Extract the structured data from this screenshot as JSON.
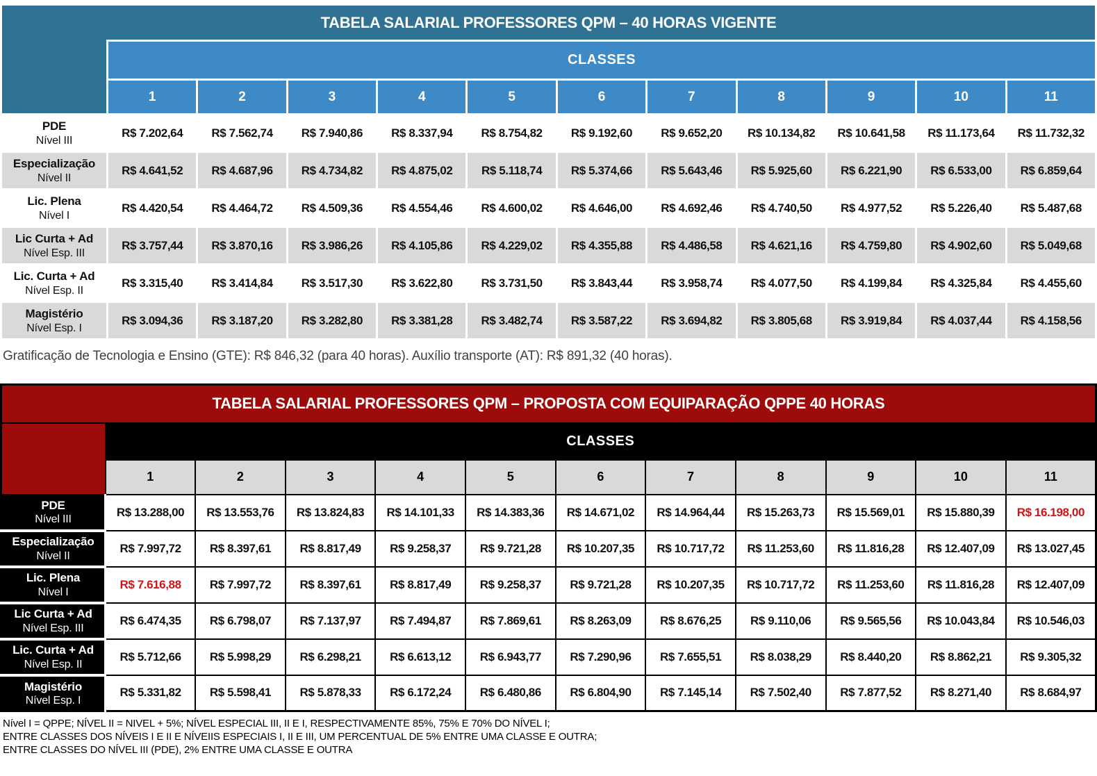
{
  "colors": {
    "blue_dark": "#2F7294",
    "blue_mid": "#3E8AC6",
    "red_dark": "#9E0B0B",
    "gray_row": "#D9D9D9",
    "red_accent": "#CC1616"
  },
  "page": {
    "gte_note": "Gratificação de Tecnologia e Ensino (GTE): R$ 846,32 (para 40 horas). Auxílio transporte (AT): R$ 891,32 (40 horas).",
    "bottom_notes": [
      "Nível I = QPPE; NÍVEL II = NIVEL  + 5%; NÍVEL ESPECIAL III, II E I, RESPECTIVAMENTE 85%, 75% E 70% DO NÍVEL I;",
      "ENTRE CLASSES DOS NÍVEIS I E II E NÍVEIIS ESPECIAIS I, II E III, UM PERCENTUAL DE 5% ENTRE UMA CLASSE E OUTRA;",
      "ENTRE CLASSES DO NÍVEL III (PDE), 2% ENTRE UMA CLASSE E OUTRA"
    ]
  },
  "tables": [
    {
      "id": "vigente",
      "title": "TABELA SALARIAL PROFESSORES QPM – 40 HORAS VIGENTE",
      "classes_label": "CLASSES",
      "class_numbers": [
        "1",
        "2",
        "3",
        "4",
        "5",
        "6",
        "7",
        "8",
        "9",
        "10",
        "11"
      ],
      "rows": [
        {
          "label": "PDE",
          "sublabel": "Nível III",
          "highlight": [],
          "values": [
            "R$ 7.202,64",
            "R$ 7.562,74",
            "R$ 7.940,86",
            "R$ 8.337,94",
            "R$ 8.754,82",
            "R$ 9.192,60",
            "R$ 9.652,20",
            "R$ 10.134,82",
            "R$ 10.641,58",
            "R$ 11.173,64",
            "R$ 11.732,32"
          ]
        },
        {
          "label": "Especialização",
          "sublabel": "Nível II",
          "highlight": [],
          "values": [
            "R$ 4.641,52",
            "R$ 4.687,96",
            "R$ 4.734,82",
            "R$ 4.875,02",
            "R$ 5.118,74",
            "R$ 5.374,66",
            "R$ 5.643,46",
            "R$ 5.925,60",
            "R$ 6.221,90",
            "R$ 6.533,00",
            "R$ 6.859,64"
          ]
        },
        {
          "label": "Lic. Plena",
          "sublabel": "Nível I",
          "highlight": [],
          "values": [
            "R$ 4.420,54",
            "R$ 4.464,72",
            "R$ 4.509,36",
            "R$ 4.554,46",
            "R$ 4.600,02",
            "R$ 4.646,00",
            "R$ 4.692,46",
            "R$ 4.740,50",
            "R$ 4.977,52",
            "R$ 5.226,40",
            "R$ 5.487,68"
          ]
        },
        {
          "label": "Lic Curta + Ad",
          "sublabel": "Nível Esp. III",
          "highlight": [],
          "values": [
            "R$ 3.757,44",
            "R$ 3.870,16",
            "R$ 3.986,26",
            "R$ 4.105,86",
            "R$ 4.229,02",
            "R$ 4.355,88",
            "R$ 4.486,58",
            "R$ 4.621,16",
            "R$ 4.759,80",
            "R$ 4.902,60",
            "R$ 5.049,68"
          ]
        },
        {
          "label": "Lic. Curta + Ad",
          "sublabel": "Nível Esp. II",
          "highlight": [],
          "values": [
            "R$ 3.315,40",
            "R$ 3.414,84",
            "R$ 3.517,30",
            "R$ 3.622,80",
            "R$ 3.731,50",
            "R$ 3.843,44",
            "R$ 3.958,74",
            "R$ 4.077,50",
            "R$ 4.199,84",
            "R$ 4.325,84",
            "R$ 4.455,60"
          ]
        },
        {
          "label": "Magistério",
          "sublabel": "Nível Esp. I",
          "highlight": [],
          "values": [
            "R$ 3.094,36",
            "R$ 3.187,20",
            "R$ 3.282,80",
            "R$ 3.381,28",
            "R$ 3.482,74",
            "R$ 3.587,22",
            "R$ 3.694,82",
            "R$ 3.805,68",
            "R$ 3.919,84",
            "R$ 4.037,44",
            "R$ 4.158,56"
          ]
        }
      ]
    },
    {
      "id": "proposta",
      "title": "TABELA SALARIAL PROFESSORES QPM – PROPOSTA COM EQUIPARAÇÃO QPPE 40 HORAS",
      "classes_label": "CLASSES",
      "class_numbers": [
        "1",
        "2",
        "3",
        "4",
        "5",
        "6",
        "7",
        "8",
        "9",
        "10",
        "11"
      ],
      "rows": [
        {
          "label": "PDE",
          "sublabel": "Nível III",
          "highlight": [
            10
          ],
          "values": [
            "R$ 13.288,00",
            "R$ 13.553,76",
            "R$ 13.824,83",
            "R$ 14.101,33",
            "R$ 14.383,36",
            "R$ 14.671,02",
            "R$ 14.964,44",
            "R$ 15.263,73",
            "R$ 15.569,01",
            "R$ 15.880,39",
            "R$ 16.198,00"
          ]
        },
        {
          "label": "Especialização",
          "sublabel": "Nível II",
          "highlight": [],
          "values": [
            "R$ 7.997,72",
            "R$ 8.397,61",
            "R$ 8.817,49",
            "R$ 9.258,37",
            "R$ 9.721,28",
            "R$ 10.207,35",
            "R$ 10.717,72",
            "R$ 11.253,60",
            "R$ 11.816,28",
            "R$ 12.407,09",
            "R$ 13.027,45"
          ]
        },
        {
          "label": "Lic. Plena",
          "sublabel": "Nível I",
          "highlight": [
            0
          ],
          "values": [
            "R$ 7.616,88",
            "R$ 7.997,72",
            "R$ 8.397,61",
            "R$ 8.817,49",
            "R$ 9.258,37",
            "R$ 9.721,28",
            "R$ 10.207,35",
            "R$ 10.717,72",
            "R$ 11.253,60",
            "R$ 11.816,28",
            "R$ 12.407,09"
          ]
        },
        {
          "label": "Lic Curta + Ad",
          "sublabel": "Nível Esp. III",
          "highlight": [],
          "values": [
            "R$ 6.474,35",
            "R$ 6.798,07",
            "R$ 7.137,97",
            "R$ 7.494,87",
            "R$ 7.869,61",
            "R$ 8.263,09",
            "R$ 8.676,25",
            "R$ 9.110,06",
            "R$ 9.565,56",
            "R$ 10.043,84",
            "R$ 10.546,03"
          ]
        },
        {
          "label": "Lic. Curta + Ad",
          "sublabel": "Nível Esp. II",
          "highlight": [],
          "values": [
            "R$ 5.712,66",
            "R$ 5.998,29",
            "R$ 6.298,21",
            "R$ 6.613,12",
            "R$ 6.943,77",
            "R$ 7.290,96",
            "R$ 7.655,51",
            "R$ 8.038,29",
            "R$ 8.440,20",
            "R$ 8.862,21",
            "R$ 9.305,32"
          ]
        },
        {
          "label": "Magistério",
          "sublabel": "Nível Esp. I",
          "highlight": [],
          "values": [
            "R$ 5.331,82",
            "R$ 5.598,41",
            "R$ 5.878,33",
            "R$ 6.172,24",
            "R$ 6.480,86",
            "R$ 6.804,90",
            "R$ 7.145,14",
            "R$ 7.502,40",
            "R$ 7.877,52",
            "R$ 8.271,40",
            "R$ 8.684,97"
          ]
        }
      ]
    }
  ]
}
